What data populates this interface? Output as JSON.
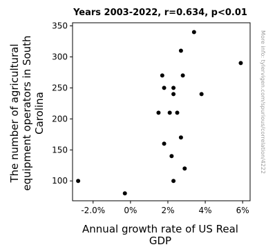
{
  "chart_data": {
    "type": "scatter",
    "title": "Years 2003-2022, r=0.634, p<0.01",
    "xlabel_lines": [
      "Annual growth rate of US Real",
      "GDP"
    ],
    "ylabel_lines": [
      "The number of agricultural",
      "equipment operators in South",
      "Carolina"
    ],
    "side_note": "More info: tylervigen.com/spurious/correlation/4222",
    "xlim": [
      -3.1,
      6.4
    ],
    "ylim": [
      68,
      355
    ],
    "xticks": [
      {
        "value": -2.0,
        "label": "-2.0%"
      },
      {
        "value": 0.0,
        "label": "0%"
      },
      {
        "value": 2.0,
        "label": "2%"
      },
      {
        "value": 4.0,
        "label": "4%"
      },
      {
        "value": 6.0,
        "label": "6%"
      }
    ],
    "yticks": [
      {
        "value": 100,
        "label": "100"
      },
      {
        "value": 150,
        "label": "150"
      },
      {
        "value": 200,
        "label": "200"
      },
      {
        "value": 250,
        "label": "250"
      },
      {
        "value": 300,
        "label": "300"
      },
      {
        "value": 350,
        "label": "350"
      }
    ],
    "grid": false,
    "marker_color": "#000000",
    "points": [
      {
        "x": -2.8,
        "y": 100
      },
      {
        "x": -0.3,
        "y": 80
      },
      {
        "x": 1.5,
        "y": 210
      },
      {
        "x": 1.7,
        "y": 270
      },
      {
        "x": 1.8,
        "y": 250
      },
      {
        "x": 1.8,
        "y": 160
      },
      {
        "x": 2.1,
        "y": 210
      },
      {
        "x": 2.2,
        "y": 140
      },
      {
        "x": 2.3,
        "y": 250
      },
      {
        "x": 2.3,
        "y": 240
      },
      {
        "x": 2.3,
        "y": 100
      },
      {
        "x": 2.5,
        "y": 210
      },
      {
        "x": 2.7,
        "y": 310
      },
      {
        "x": 2.7,
        "y": 170
      },
      {
        "x": 2.8,
        "y": 270
      },
      {
        "x": 2.9,
        "y": 120
      },
      {
        "x": 3.4,
        "y": 340
      },
      {
        "x": 3.8,
        "y": 240
      },
      {
        "x": 5.9,
        "y": 290
      }
    ]
  }
}
